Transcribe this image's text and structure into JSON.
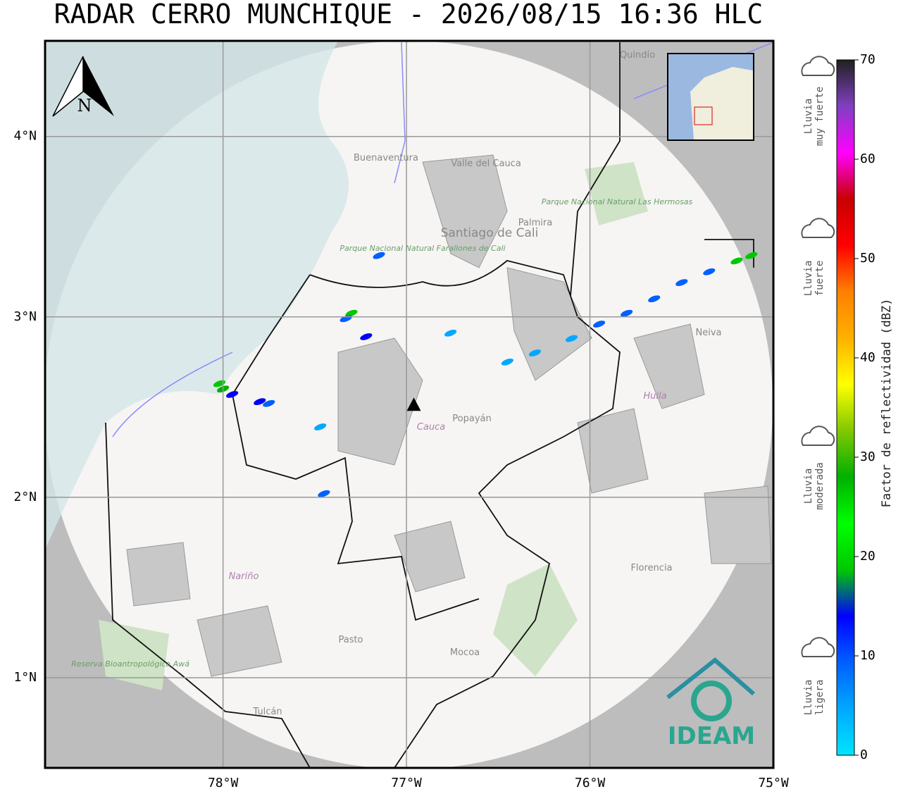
{
  "title": "RADAR CERRO MUNCHIQUE - 2026/08/15 16:36 HLC",
  "map": {
    "xlim": [
      -78.97,
      -75
    ],
    "ylim": [
      0.5,
      4.53
    ],
    "xticks": [
      {
        "value": -78,
        "label": "78°W"
      },
      {
        "value": -77,
        "label": "77°W"
      },
      {
        "value": -76,
        "label": "76°W"
      },
      {
        "value": -75,
        "label": "75°W"
      }
    ],
    "yticks": [
      {
        "value": 1,
        "label": "1°N"
      },
      {
        "value": 2,
        "label": "2°N"
      },
      {
        "value": 3,
        "label": "3°N"
      },
      {
        "value": 4,
        "label": "4°N"
      }
    ],
    "north": "N",
    "radar": {
      "lon": -76.96,
      "lat": 2.51
    },
    "places": [
      "Quindío",
      "Buenaventura",
      "Valle del Cauca",
      "Parque Nacional Natural Farallones de Cali",
      "Santiago de Cali",
      "Palmira",
      "Parque Nacional Natural Las Hermosas",
      "Neiva",
      "Huila",
      "Cauca",
      "Popayán",
      "Nariño",
      "Florencia",
      "Pasto",
      "Mocoa",
      "Reserva Bioantropológica Awá",
      "Tulcán"
    ],
    "logo": "IDEAM",
    "echoes": [
      {
        "lon": -78.0,
        "lat": 2.6,
        "dbz": 26
      },
      {
        "lon": -78.02,
        "lat": 2.63,
        "dbz": 18
      },
      {
        "lon": -77.95,
        "lat": 2.57,
        "dbz": 12
      },
      {
        "lon": -77.8,
        "lat": 2.53,
        "dbz": 16
      },
      {
        "lon": -77.75,
        "lat": 2.52,
        "dbz": 10
      },
      {
        "lon": -77.3,
        "lat": 3.02,
        "dbz": 18
      },
      {
        "lon": -77.33,
        "lat": 2.99,
        "dbz": 10
      },
      {
        "lon": -77.22,
        "lat": 2.89,
        "dbz": 15
      },
      {
        "lon": -77.45,
        "lat": 2.02,
        "dbz": 8
      },
      {
        "lon": -77.47,
        "lat": 2.39,
        "dbz": 6
      },
      {
        "lon": -77.15,
        "lat": 3.34,
        "dbz": 8
      },
      {
        "lon": -76.76,
        "lat": 2.91,
        "dbz": 5
      },
      {
        "lon": -76.45,
        "lat": 2.75,
        "dbz": 4
      },
      {
        "lon": -76.3,
        "lat": 2.8,
        "dbz": 5
      },
      {
        "lon": -76.1,
        "lat": 2.88,
        "dbz": 6
      },
      {
        "lon": -75.95,
        "lat": 2.96,
        "dbz": 8
      },
      {
        "lon": -75.8,
        "lat": 3.02,
        "dbz": 9
      },
      {
        "lon": -75.65,
        "lat": 3.1,
        "dbz": 10
      },
      {
        "lon": -75.5,
        "lat": 3.19,
        "dbz": 10
      },
      {
        "lon": -75.35,
        "lat": 3.25,
        "dbz": 11
      },
      {
        "lon": -75.2,
        "lat": 3.31,
        "dbz": 17
      },
      {
        "lon": -75.12,
        "lat": 3.34,
        "dbz": 20
      }
    ]
  },
  "colorbar": {
    "label": "Factor de reflectividad (dBZ)",
    "lim": [
      0,
      70
    ],
    "ticks": [
      0,
      10,
      20,
      30,
      40,
      50,
      60,
      70
    ],
    "colors": [
      "#00e5ff",
      "#00a8ff",
      "#0060ff",
      "#0000ff",
      "#00c800",
      "#00ff00",
      "#00b000",
      "#80c800",
      "#ffff00",
      "#ffb000",
      "#ff8000",
      "#ff0000",
      "#c80000",
      "#ff00ff",
      "#8040c0",
      "#202020"
    ],
    "categories": [
      {
        "lines": [
          "Lluvia",
          "muy fuerte"
        ]
      },
      {
        "lines": [
          "Lluvia",
          "fuerte"
        ]
      },
      {
        "lines": [
          "Lluvia",
          "moderada"
        ]
      },
      {
        "lines": [
          "Lluvia",
          "ligera"
        ]
      }
    ]
  }
}
